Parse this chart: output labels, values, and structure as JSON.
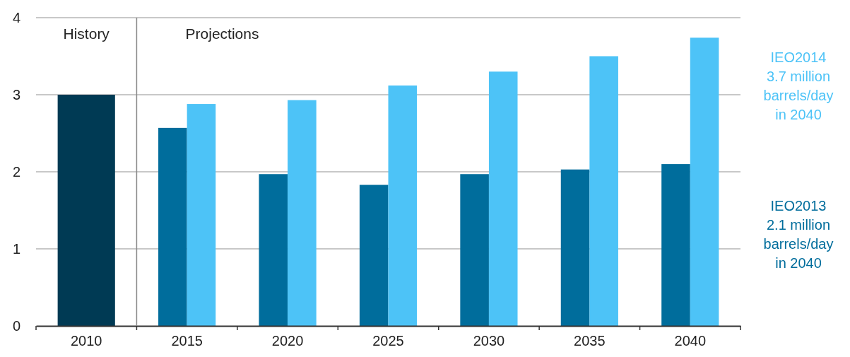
{
  "chart_data": {
    "type": "bar",
    "categories": [
      "2010",
      "2015",
      "2020",
      "2025",
      "2030",
      "2035",
      "2040"
    ],
    "series": [
      {
        "color": "#003a54",
        "values": [
          3.0,
          null,
          null,
          null,
          null,
          null,
          null
        ]
      },
      {
        "name": "IEO2013 2.1 million barrels/day in 2040",
        "color": "#006d9c",
        "values": [
          null,
          2.57,
          1.97,
          1.83,
          1.97,
          2.03,
          2.1
        ]
      },
      {
        "name": "IEO2014 3.7 million barrels/day in 2040",
        "color": "#4dc3f7",
        "values": [
          null,
          2.88,
          2.93,
          3.12,
          3.3,
          3.5,
          3.74
        ]
      }
    ],
    "ylim": [
      0,
      4
    ],
    "yticks": [
      0,
      1,
      2,
      3,
      4
    ],
    "grid": "y",
    "ref_lines": [
      {
        "axis": "x",
        "value": "2015",
        "color": "#888888"
      }
    ],
    "annotations": [
      "History",
      "Projections"
    ]
  }
}
